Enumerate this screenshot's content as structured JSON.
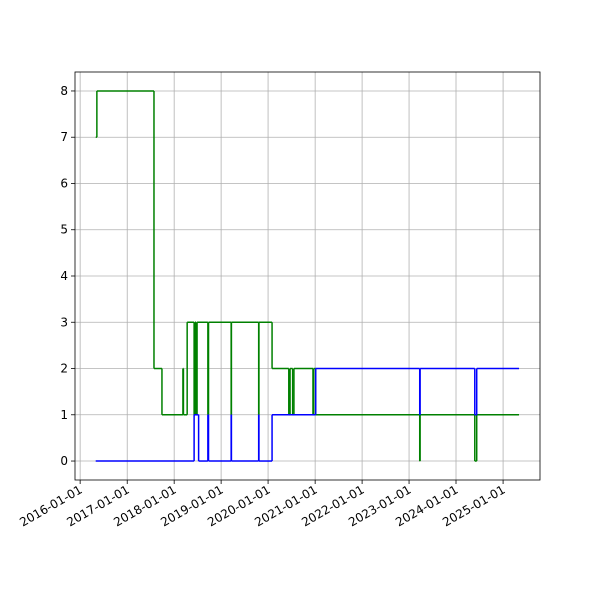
{
  "chart_data": {
    "type": "step",
    "xlim": [
      "2015-11-22",
      "2025-10-15"
    ],
    "xticks": [
      "2016-01-01",
      "2017-01-01",
      "2018-01-01",
      "2019-01-01",
      "2020-01-01",
      "2021-01-01",
      "2022-01-01",
      "2023-01-01",
      "2024-01-01",
      "2025-01-01"
    ],
    "ylim": [
      -0.41,
      8.41
    ],
    "yticks": [
      0,
      1,
      2,
      3,
      4,
      5,
      6,
      7,
      8
    ],
    "grid": true,
    "series": [
      {
        "color": "#008000",
        "x": [
          "2016-05-01",
          "2016-05-10",
          "2017-07-28",
          "2017-09-28",
          "2018-03-10",
          "2018-03-14",
          "2018-04-12",
          "2018-06-05",
          "2018-06-12",
          "2018-06-20",
          "2018-06-28",
          "2018-07-05",
          "2018-09-20",
          "2018-09-25",
          "2019-03-20",
          "2019-03-22",
          "2019-10-20",
          "2019-10-22",
          "2020-02-01",
          "2020-06-10",
          "2020-06-20",
          "2020-07-10",
          "2020-07-20",
          "2020-12-15",
          "2020-12-20",
          "2021-01-05",
          "2023-03-25",
          "2023-03-28",
          "2024-05-26",
          "2024-06-10",
          "2025-05-05"
        ],
        "values": [
          7,
          8,
          2,
          1,
          2,
          1,
          3,
          1,
          3,
          1,
          3,
          3,
          1,
          3,
          1,
          3,
          1,
          3,
          2,
          1,
          2,
          1,
          2,
          1,
          2,
          1,
          0,
          1,
          0,
          1,
          1
        ]
      },
      {
        "color": "#0000ff",
        "x": [
          "2016-05-01",
          "2018-06-05",
          "2018-07-10",
          "2018-09-20",
          "2018-09-25",
          "2019-03-20",
          "2019-03-22",
          "2019-10-20",
          "2019-10-22",
          "2020-02-01",
          "2021-01-05",
          "2023-03-25",
          "2023-03-28",
          "2024-05-26",
          "2024-06-10",
          "2025-05-05"
        ],
        "values": [
          0,
          1,
          0,
          1,
          0,
          1,
          0,
          1,
          0,
          1,
          2,
          1,
          2,
          1,
          2,
          2
        ]
      }
    ]
  }
}
